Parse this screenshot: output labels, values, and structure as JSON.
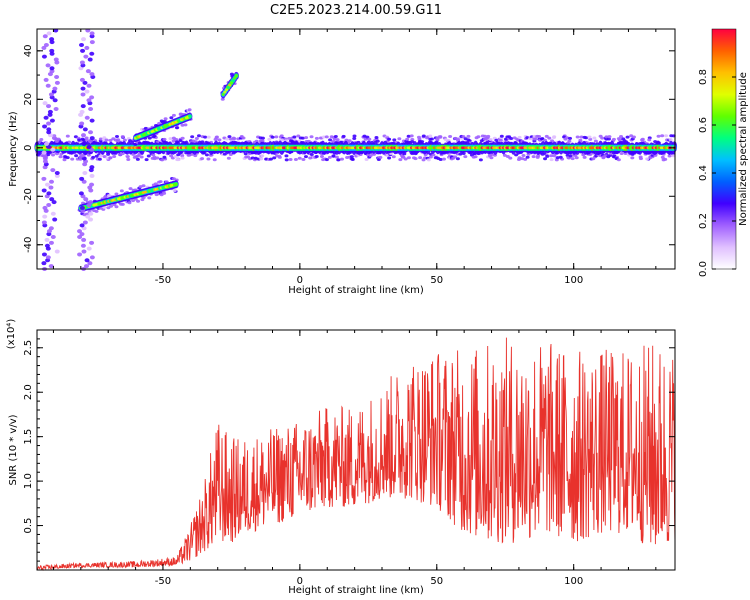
{
  "title": "C2E5.2023.214.00.59.G11",
  "chart_data": [
    {
      "type": "heatmap",
      "xlabel": "Height of straight line (km)",
      "ylabel": "Frequency (Hz)",
      "xlim": [
        -96,
        137
      ],
      "ylim": [
        -50,
        49
      ],
      "x_ticks": [
        -50,
        0,
        50,
        100
      ],
      "y_ticks": [
        -40,
        -20,
        0,
        20,
        40
      ],
      "colorbar": {
        "label": "Normalized spectral amplitude",
        "range": [
          0.0,
          1.0
        ],
        "ticks": [
          0.0,
          0.2,
          0.4,
          0.6,
          0.8
        ],
        "colormap": [
          "#ffffff",
          "#e0c0ff",
          "#a060ff",
          "#4000ff",
          "#0060ff",
          "#00c0ff",
          "#00ff80",
          "#60ff00",
          "#e0ff00",
          "#ffc000",
          "#ff6000",
          "#ff0040"
        ]
      },
      "features": [
        {
          "name": "main band",
          "x": [
            -96,
            137
          ],
          "frequency_hz": 0
        },
        {
          "name": "upper branch",
          "x": [
            -60,
            -40
          ],
          "frequency_hz": [
            4,
            13
          ]
        },
        {
          "name": "lower branch",
          "x": [
            -80,
            -45
          ],
          "frequency_hz": [
            -25,
            -15
          ]
        },
        {
          "name": "upper spur",
          "x": [
            -28,
            -23
          ],
          "frequency_hz": [
            22,
            30
          ]
        },
        {
          "name": "vertical streak",
          "x": -91,
          "frequency_hz": [
            -50,
            49
          ]
        },
        {
          "name": "vertical streak",
          "x": -78,
          "frequency_hz": [
            -50,
            49
          ]
        }
      ]
    },
    {
      "type": "line",
      "xlabel": "Height of straight line (km)",
      "ylabel": "SNR (10 * v/v)",
      "y_multiplier": "(x10⁴)",
      "xlim": [
        -96,
        137
      ],
      "ylim": [
        0,
        2.7
      ],
      "x_ticks": [
        -50,
        0,
        50,
        100
      ],
      "y_ticks": [
        0.5,
        1.0,
        1.5,
        2.0,
        2.5
      ],
      "series": [
        {
          "color": "#e8322c",
          "envelope": {
            "x": [
              -96,
              -80,
              -60,
              -45,
              -40,
              -35,
              -30,
              -25,
              -20,
              -10,
              0,
              10,
              20,
              30,
              40,
              50,
              60,
              70,
              80,
              90,
              100,
              110,
              120,
              130,
              137
            ],
            "low": [
              0.0,
              0.03,
              0.03,
              0.05,
              0.1,
              0.2,
              0.3,
              0.3,
              0.4,
              0.5,
              0.6,
              0.7,
              0.7,
              0.8,
              0.8,
              0.7,
              0.4,
              0.3,
              0.3,
              0.4,
              0.3,
              0.4,
              0.4,
              0.2,
              0.3
            ],
            "high": [
              0.05,
              0.08,
              0.1,
              0.15,
              0.5,
              1.0,
              1.7,
              1.5,
              1.5,
              1.6,
              1.7,
              1.85,
              1.85,
              2.1,
              2.4,
              2.5,
              2.5,
              2.6,
              2.65,
              2.6,
              2.5,
              2.5,
              2.5,
              2.6,
              2.5
            ]
          }
        }
      ]
    }
  ]
}
